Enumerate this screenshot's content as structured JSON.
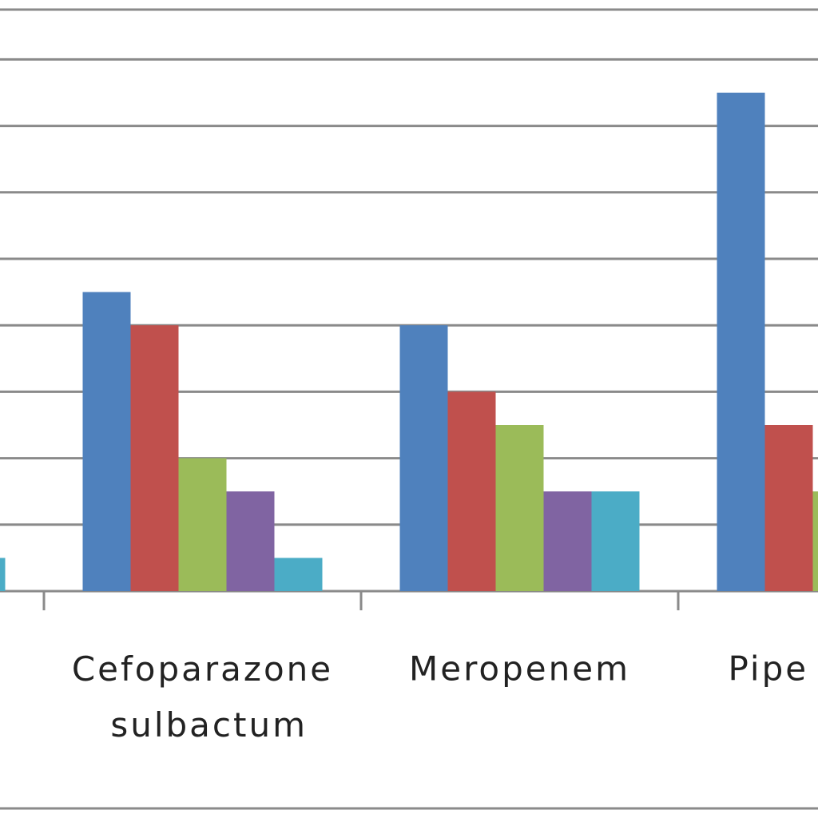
{
  "chart_data": {
    "type": "bar",
    "categories": [
      null,
      "Cefoparazone sulbactum",
      "Meropenem",
      "Pipe"
    ],
    "series": [
      {
        "color": "#4f81bd",
        "values": [
          null,
          4.5,
          4,
          7.5
        ]
      },
      {
        "color": "#c0504d",
        "values": [
          null,
          4,
          3,
          2.5
        ]
      },
      {
        "color": "#9bbb59",
        "values": [
          null,
          2,
          2.5,
          1.5
        ]
      },
      {
        "color": "#8064a2",
        "values": [
          null,
          1.5,
          1.5,
          null
        ]
      },
      {
        "color": "#4bacc6",
        "values": [
          0.5,
          0.5,
          1.5,
          null
        ]
      }
    ],
    "ylim": [
      0,
      8.75
    ],
    "yticks": [
      0,
      1,
      2,
      3,
      4,
      5,
      6,
      7,
      8
    ],
    "grid": true
  }
}
